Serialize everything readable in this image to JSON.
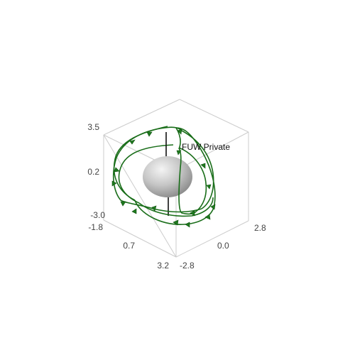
{
  "chart_data": {
    "type": "scatter3d",
    "title": "",
    "annotation": "FUW Private",
    "axes": {
      "x": {
        "ticks": [
          "-1.8",
          "0.7",
          "3.2"
        ],
        "range": [
          -1.8,
          3.2
        ]
      },
      "y": {
        "ticks": [
          "-2.8",
          "0.0",
          "2.8"
        ],
        "range": [
          -2.8,
          2.8
        ]
      },
      "z": {
        "ticks": [
          "-3.0",
          "0.2",
          "3.5"
        ],
        "range": [
          -3.0,
          3.5
        ]
      }
    },
    "objects": [
      {
        "name": "central body",
        "kind": "ellipsoid",
        "color": "#bdbdbd"
      },
      {
        "name": "polar axis",
        "kind": "line",
        "color": "#111111"
      }
    ],
    "series": [
      {
        "name": "field line 1",
        "color": "#1a6e1a",
        "kind": "closed loop with direction markers"
      },
      {
        "name": "field line 2",
        "color": "#1a6e1a",
        "kind": "closed loop with direction markers"
      },
      {
        "name": "field line 3",
        "color": "#1a6e1a",
        "kind": "closed loop with direction markers"
      },
      {
        "name": "field line 4",
        "color": "#1a6e1a",
        "kind": "closed loop with direction markers"
      }
    ],
    "colors": {
      "box": "#cccccc",
      "tick_text": "#444444",
      "line": "#1a6e1a",
      "marker": "#1e7a1e"
    }
  }
}
